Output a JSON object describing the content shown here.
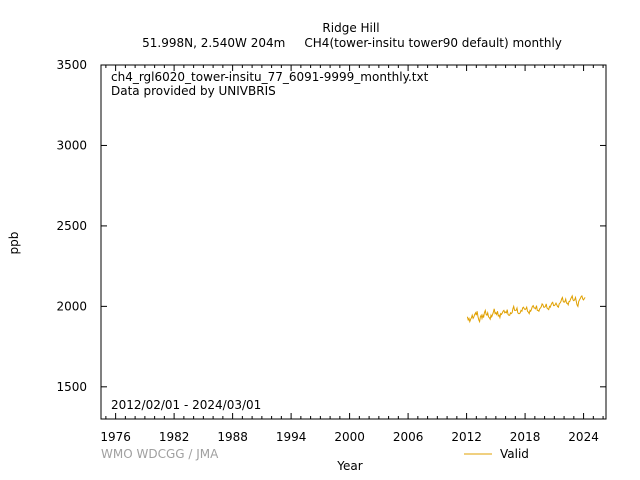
{
  "chart_data": {
    "type": "line",
    "title": "Ridge Hill",
    "subtitle": "51.998N, 2.540W 204m     CH4(tower-insitu tower90 default) monthly",
    "file_label": "ch4_rgl6020_tower-insitu_77_6091-9999_monthly.txt",
    "provider_label": "Data provided by UNIVBRIS",
    "date_range_label": "2012/02/01 - 2024/03/01",
    "xlabel": "Year",
    "ylabel": "ppb",
    "xlim": [
      1974.5,
      2026.3
    ],
    "ylim": [
      1300,
      3500
    ],
    "x_ticks": [
      1976,
      1982,
      1988,
      1994,
      2000,
      2006,
      2012,
      2018,
      2024
    ],
    "y_ticks": [
      1500,
      2000,
      2500,
      3000,
      3500
    ],
    "watermark": "WMO WDCGG / JMA",
    "legend": {
      "position": "bottom-right",
      "entries": [
        "Valid"
      ]
    },
    "series": [
      {
        "name": "Valid",
        "color": "#e0a000",
        "x": [
          2012.08,
          2012.17,
          2012.25,
          2012.33,
          2012.42,
          2012.5,
          2012.58,
          2012.67,
          2012.75,
          2012.83,
          2012.92,
          2013.0,
          2013.08,
          2013.17,
          2013.25,
          2013.33,
          2013.42,
          2013.5,
          2013.58,
          2013.67,
          2013.75,
          2013.83,
          2013.92,
          2014.0,
          2014.08,
          2014.17,
          2014.25,
          2014.33,
          2014.42,
          2014.5,
          2014.58,
          2014.67,
          2014.75,
          2014.83,
          2014.92,
          2015.0,
          2015.08,
          2015.17,
          2015.25,
          2015.33,
          2015.42,
          2015.5,
          2015.58,
          2015.67,
          2015.75,
          2015.83,
          2015.92,
          2016.0,
          2016.08,
          2016.17,
          2016.25,
          2016.33,
          2016.42,
          2016.5,
          2016.58,
          2016.67,
          2016.75,
          2016.83,
          2016.92,
          2017.0,
          2017.08,
          2017.17,
          2017.25,
          2017.33,
          2017.42,
          2017.5,
          2017.58,
          2017.67,
          2017.75,
          2017.83,
          2017.92,
          2018.0,
          2018.08,
          2018.17,
          2018.25,
          2018.33,
          2018.42,
          2018.5,
          2018.58,
          2018.67,
          2018.75,
          2018.83,
          2018.92,
          2019.0,
          2019.08,
          2019.17,
          2019.25,
          2019.33,
          2019.42,
          2019.5,
          2019.58,
          2019.67,
          2019.75,
          2019.83,
          2019.92,
          2020.0,
          2020.08,
          2020.17,
          2020.25,
          2020.33,
          2020.42,
          2020.5,
          2020.58,
          2020.67,
          2020.75,
          2020.83,
          2020.92,
          2021.0,
          2021.08,
          2021.17,
          2021.25,
          2021.33,
          2021.42,
          2021.5,
          2021.58,
          2021.67,
          2021.75,
          2021.83,
          2021.92,
          2022.0,
          2022.08,
          2022.17,
          2022.25,
          2022.33,
          2022.42,
          2022.5,
          2022.58,
          2022.67,
          2022.75,
          2022.83,
          2022.92,
          2023.0,
          2023.08,
          2023.17,
          2023.25,
          2023.33,
          2023.42,
          2023.5,
          2023.58,
          2023.67,
          2023.75,
          2023.83,
          2023.92,
          2024.0,
          2024.08,
          2024.17
        ],
        "values": [
          1935,
          1915,
          1925,
          1905,
          1920,
          1930,
          1945,
          1925,
          1935,
          1950,
          1960,
          1945,
          1970,
          1935,
          1915,
          1905,
          1935,
          1945,
          1925,
          1945,
          1930,
          1960,
          1975,
          1950,
          1945,
          1960,
          1935,
          1930,
          1920,
          1945,
          1935,
          1950,
          1965,
          1985,
          1955,
          1960,
          1950,
          1970,
          1940,
          1945,
          1930,
          1955,
          1950,
          1960,
          1970,
          1975,
          1960,
          1965,
          1960,
          1980,
          1950,
          1945,
          1945,
          1960,
          1955,
          1960,
          1985,
          2000,
          1975,
          1975,
          1975,
          1990,
          1960,
          1955,
          1955,
          1960,
          1975,
          1970,
          1990,
          1995,
          1985,
          1980,
          1985,
          1995,
          1970,
          1965,
          1955,
          1975,
          1970,
          1985,
          2000,
          2005,
          1990,
          1990,
          1985,
          2005,
          1975,
          1975,
          1970,
          1985,
          1990,
          2000,
          2015,
          2010,
          1995,
          1995,
          2000,
          2015,
          1990,
          1985,
          1980,
          2000,
          1995,
          2010,
          2020,
          2025,
          2005,
          2005,
          2010,
          2020,
          2010,
          2000,
          1995,
          2015,
          2020,
          2030,
          2045,
          2055,
          2030,
          2025,
          2030,
          2045,
          2020,
          2020,
          2010,
          2030,
          2030,
          2045,
          2055,
          2065,
          2040,
          2035,
          2040,
          2055,
          2030,
          2010,
          2000,
          2030,
          2040,
          2050,
          2060,
          2065,
          2045,
          2040,
          2050,
          2055
        ]
      }
    ]
  }
}
